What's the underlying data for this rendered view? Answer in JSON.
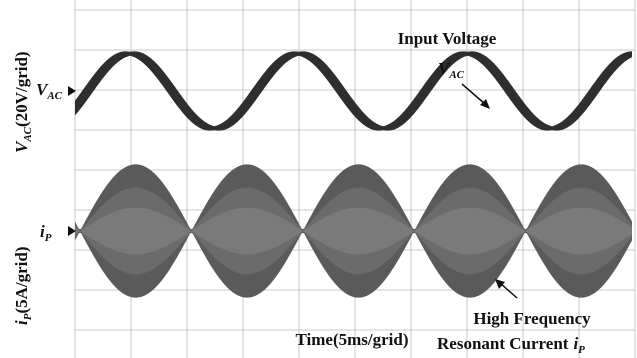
{
  "chart_data": {
    "type": "line",
    "title": "",
    "channels": [
      {
        "name": "V_AC",
        "axis_label": {
          "main": "V",
          "sub": "AC",
          "rest": "(20V/grid)"
        },
        "marker_label": {
          "main": "V",
          "sub": "AC"
        },
        "annotation": {
          "main": "V",
          "sub": "AC"
        },
        "heading": "Input Voltage",
        "scale": "20V/grid",
        "waveform": "sine",
        "periods_shown": 3.3,
        "amplitude_div": 1.0
      },
      {
        "name": "i_P",
        "axis_label": {
          "main": "i",
          "sub": "P",
          "rest": "(5A/grid)"
        },
        "marker_label": {
          "main": "i",
          "sub": "P"
        },
        "annotation_lines": [
          "High Frequency",
          "Resonant Current"
        ],
        "annotation_symbol": {
          "main": "i",
          "sub": "P"
        },
        "scale": "5A/grid",
        "waveform": "high-frequency carrier with rectified-sine envelope",
        "envelope_peaks": 5,
        "amplitude_div": 1.7
      }
    ],
    "xlabel": "Time(5ms/grid)",
    "x_scale": "5ms/grid",
    "grid": true,
    "grid_divisions": {
      "x": 10,
      "y": 8
    }
  },
  "colors": {
    "trace": "#3a3a3a",
    "grid": "#c8c8c8",
    "text": "#111111"
  }
}
